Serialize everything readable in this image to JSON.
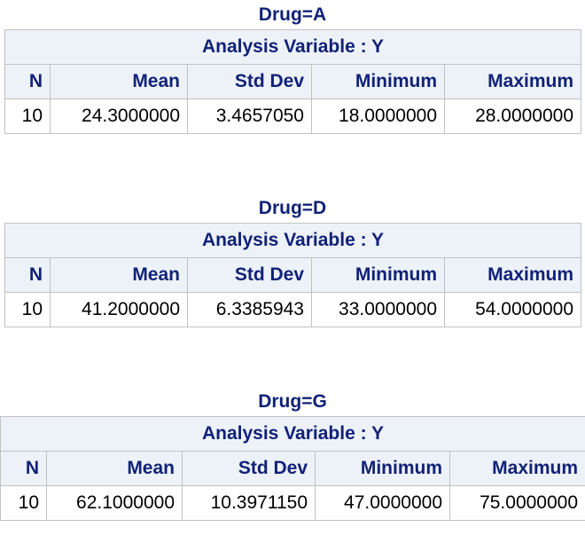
{
  "analysis_label": "Analysis Variable : Y",
  "columns": [
    "N",
    "Mean",
    "Std Dev",
    "Minimum",
    "Maximum"
  ],
  "groups": [
    {
      "title": "Drug=A",
      "row": {
        "n": "10",
        "mean": "24.3000000",
        "std_dev": "3.4657050",
        "minimum": "18.0000000",
        "maximum": "28.0000000"
      }
    },
    {
      "title": "Drug=D",
      "row": {
        "n": "10",
        "mean": "41.2000000",
        "std_dev": "6.3385943",
        "minimum": "33.0000000",
        "maximum": "54.0000000"
      }
    },
    {
      "title": "Drug=G",
      "row": {
        "n": "10",
        "mean": "62.1000000",
        "std_dev": "10.3971150",
        "minimum": "47.0000000",
        "maximum": "75.0000000"
      }
    }
  ]
}
